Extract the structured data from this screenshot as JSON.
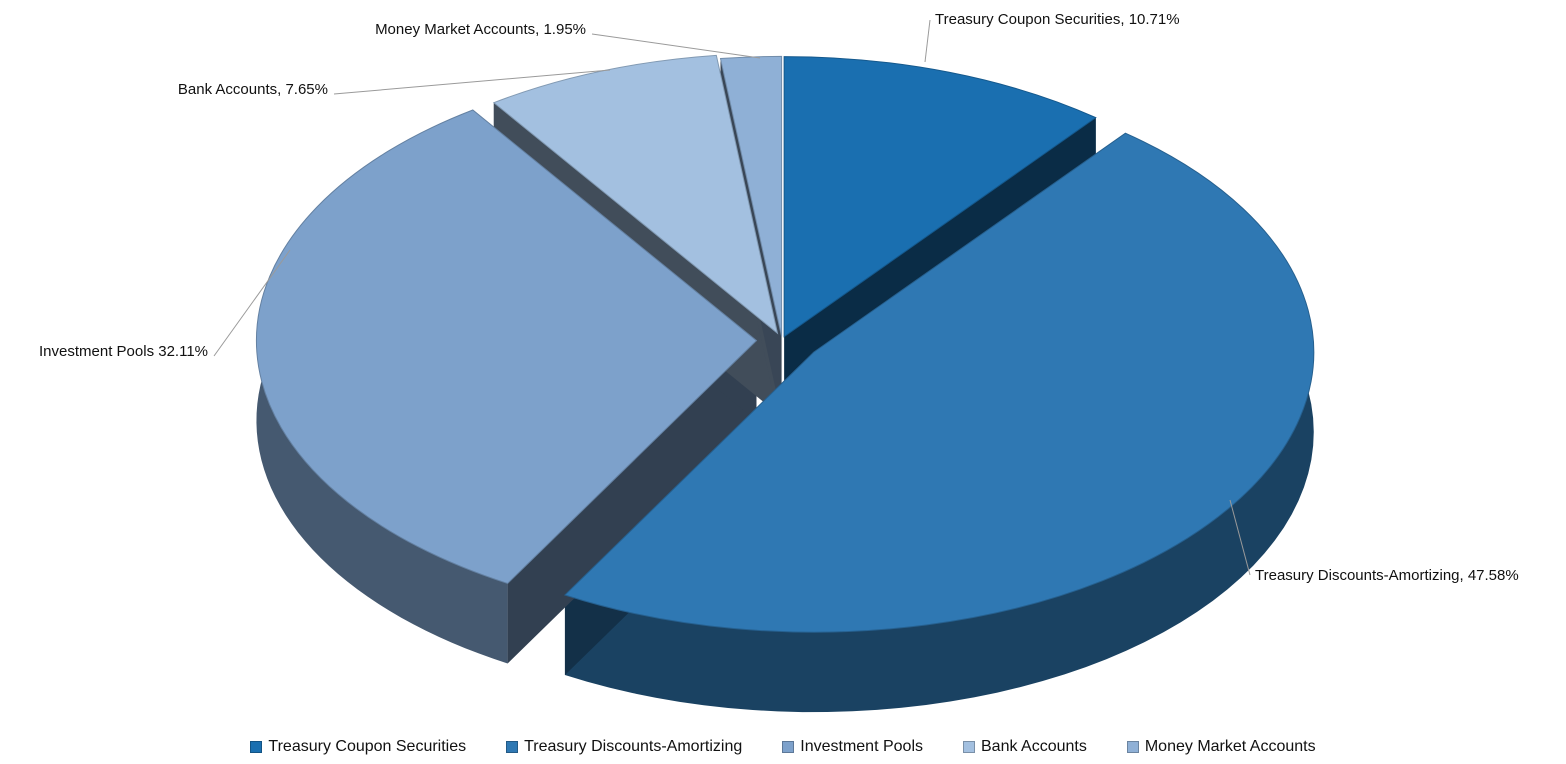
{
  "chart_data": {
    "type": "pie",
    "title": "",
    "series": [
      {
        "values": [
          {
            "label": "Treasury Coupon Securities",
            "value": 10.71,
            "data_label": "Treasury Coupon Securities, 10.71%",
            "color": "#1a6fb0"
          },
          {
            "label": "Treasury Discounts-Amortizing",
            "value": 47.58,
            "data_label": "Treasury Discounts-Amortizing, 47.58%",
            "color": "#2f78b3"
          },
          {
            "label": "Investment Pools",
            "value": 32.11,
            "data_label": "Investment Pools 32.11%",
            "color": "#7da1cb"
          },
          {
            "label": "Bank Accounts",
            "value": 7.65,
            "data_label": "Bank Accounts, 7.65%",
            "color": "#a3c0e0"
          },
          {
            "label": "Money Market Accounts",
            "value": 1.95,
            "data_label": "Money Market Accounts, 1.95%",
            "color": "#8fb0d6"
          }
        ]
      }
    ],
    "legend_position": "bottom",
    "style": "3d-exploded"
  },
  "legend": {
    "items": [
      {
        "label": "Treasury Coupon Securities",
        "color": "#1a6fb0"
      },
      {
        "label": "Treasury Discounts-Amortizing",
        "color": "#2f78b3"
      },
      {
        "label": "Investment Pools",
        "color": "#7da1cb"
      },
      {
        "label": "Bank Accounts",
        "color": "#a3c0e0"
      },
      {
        "label": "Money Market Accounts",
        "color": "#8fb0d6"
      }
    ]
  }
}
